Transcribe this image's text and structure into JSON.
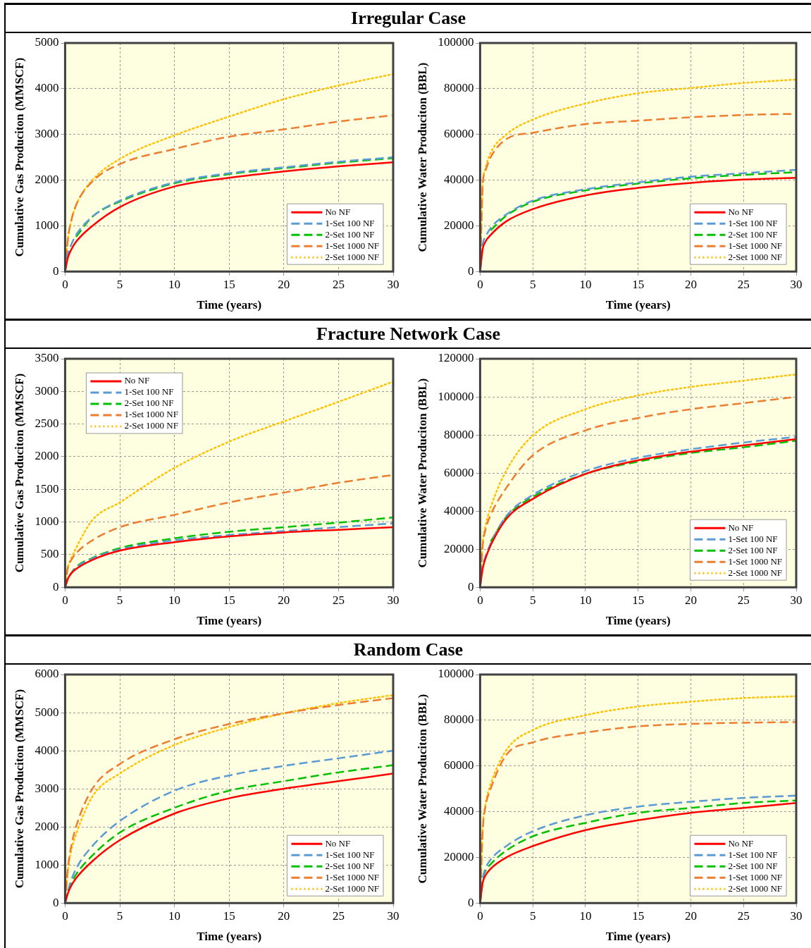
{
  "chart_data": [
    {
      "type": "line",
      "title": "Irregular Case",
      "xlabel": "Time (years)",
      "ylabel": "Cumulative Gas Produciton (MMSCF)",
      "x": [
        0,
        0.25,
        0.5,
        1,
        2.5,
        5,
        10,
        15,
        20,
        25,
        30
      ],
      "xlim": [
        0,
        30
      ],
      "xticks": [
        0,
        5,
        10,
        15,
        20,
        25,
        30
      ],
      "ylim": [
        0,
        5000
      ],
      "yticks": [
        0,
        1000,
        2000,
        3000,
        4000,
        5000
      ],
      "grid": true,
      "legend": "bottom right",
      "marker": "none",
      "series": [
        {
          "name": "No NF",
          "color": "#ff0000",
          "line_style": "solid",
          "values": [
            0,
            300,
            450,
            650,
            1000,
            1410,
            1860,
            2050,
            2190,
            2300,
            2390
          ]
        },
        {
          "name": "1-Set 100 NF",
          "color": "#5b9bd5",
          "line_style": "dashed",
          "values": [
            0,
            380,
            550,
            800,
            1200,
            1550,
            1950,
            2150,
            2280,
            2400,
            2500
          ]
        },
        {
          "name": "2-Set 100 NF",
          "color": "#00c000",
          "line_style": "dashed",
          "values": [
            null,
            null,
            null,
            760,
            1200,
            1530,
            1930,
            2130,
            2260,
            2380,
            2480
          ]
        },
        {
          "name": "1-Set 1000 NF",
          "color": "#ed7d31",
          "line_style": "dashed",
          "values": [
            0,
            700,
            1050,
            1450,
            1970,
            2350,
            2680,
            2950,
            3110,
            3280,
            3420
          ]
        },
        {
          "name": "2-Set 1000 NF",
          "color": "#ffc000",
          "line_style": "dotted",
          "values": [
            0,
            700,
            1050,
            1450,
            2000,
            2460,
            2980,
            3390,
            3770,
            4070,
            4320
          ]
        }
      ]
    },
    {
      "type": "line",
      "xlabel": "Time (years)",
      "ylabel": "Cumulative Water Produciton (BBL)",
      "x": [
        0,
        0.25,
        0.5,
        1,
        2.5,
        5,
        10,
        15,
        20,
        25,
        30
      ],
      "xlim": [
        0,
        30
      ],
      "xticks": [
        0,
        5,
        10,
        15,
        20,
        25,
        30
      ],
      "ylim": [
        0,
        100000
      ],
      "yticks": [
        0,
        20000,
        40000,
        60000,
        80000,
        100000
      ],
      "grid": true,
      "legend": "bottom right",
      "marker": "none",
      "series": [
        {
          "name": "No NF",
          "color": "#ff0000",
          "line_style": "solid",
          "values": [
            0,
            10000,
            13000,
            16000,
            22000,
            27300,
            33300,
            36600,
            38800,
            40200,
            41000
          ]
        },
        {
          "name": "1-Set 100 NF",
          "color": "#5b9bd5",
          "line_style": "dashed",
          "values": [
            0,
            12000,
            15000,
            19000,
            25000,
            31000,
            36000,
            39000,
            41500,
            43000,
            44500
          ]
        },
        {
          "name": "2-Set 100 NF",
          "color": "#00c000",
          "line_style": "dashed",
          "values": [
            null,
            null,
            null,
            18000,
            24500,
            30500,
            35500,
            38500,
            40800,
            42300,
            43500
          ]
        },
        {
          "name": "1-Set 1000 NF",
          "color": "#ed7d31",
          "line_style": "dashed",
          "values": [
            0,
            38000,
            44000,
            50000,
            58000,
            60700,
            64500,
            66000,
            67500,
            68500,
            69000
          ]
        },
        {
          "name": "2-Set 1000 NF",
          "color": "#ffc000",
          "line_style": "dotted",
          "values": [
            0,
            38000,
            45000,
            52000,
            60000,
            66500,
            73500,
            78000,
            80300,
            82500,
            84000
          ]
        }
      ]
    },
    {
      "type": "line",
      "title": "Fracture Network Case",
      "xlabel": "Time (years)",
      "ylabel": "Cumulative Gas Produciton (MMSCF)",
      "x": [
        0,
        0.25,
        0.5,
        1,
        2.5,
        5,
        10,
        15,
        20,
        25,
        30
      ],
      "xlim": [
        0,
        30
      ],
      "xticks": [
        0,
        5,
        10,
        15,
        20,
        25,
        30
      ],
      "ylim": [
        0,
        3500
      ],
      "yticks": [
        0,
        500,
        1000,
        1500,
        2000,
        2500,
        3000,
        3500
      ],
      "grid": true,
      "legend": "top left",
      "marker": "none",
      "series": [
        {
          "name": "No NF",
          "color": "#ff0000",
          "line_style": "solid",
          "values": [
            0,
            130,
            200,
            280,
            420,
            560,
            690,
            780,
            840,
            880,
            920
          ]
        },
        {
          "name": "1-Set 100 NF",
          "color": "#5b9bd5",
          "line_style": "dashed",
          "values": [
            0,
            130,
            200,
            300,
            440,
            580,
            720,
            800,
            860,
            920,
            980
          ]
        },
        {
          "name": "2-Set 100 NF",
          "color": "#00c000",
          "line_style": "dashed",
          "values": [
            0,
            130,
            200,
            310,
            450,
            600,
            750,
            850,
            920,
            990,
            1070
          ]
        },
        {
          "name": "1-Set 1000 NF",
          "color": "#ed7d31",
          "line_style": "dashed",
          "values": [
            0,
            300,
            400,
            520,
            720,
            920,
            1110,
            1300,
            1450,
            1600,
            1720
          ]
        },
        {
          "name": "2-Set 1000 NF",
          "color": "#ffc000",
          "line_style": "dotted",
          "values": [
            0,
            300,
            420,
            600,
            1030,
            1300,
            1830,
            2230,
            2540,
            2840,
            3150
          ]
        }
      ]
    },
    {
      "type": "line",
      "xlabel": "Time (years)",
      "ylabel": "Cumulative Water Produciton (BBL)",
      "x": [
        0,
        0.25,
        0.5,
        1,
        2.5,
        5,
        10,
        15,
        20,
        25,
        30
      ],
      "xlim": [
        0,
        30
      ],
      "xticks": [
        0,
        5,
        10,
        15,
        20,
        25,
        30
      ],
      "ylim": [
        0,
        120000
      ],
      "yticks": [
        0,
        20000,
        40000,
        60000,
        80000,
        100000,
        120000
      ],
      "grid": true,
      "legend": "bottom right",
      "marker": "none",
      "series": [
        {
          "name": "No NF",
          "color": "#ff0000",
          "line_style": "solid",
          "values": [
            0,
            10000,
            15000,
            22000,
            36000,
            46400,
            59500,
            66700,
            71200,
            74500,
            77800
          ]
        },
        {
          "name": "1-Set 100 NF",
          "color": "#5b9bd5",
          "line_style": "dashed",
          "values": [
            0,
            11000,
            16000,
            23000,
            37500,
            48500,
            61000,
            68000,
            72500,
            76000,
            79000
          ]
        },
        {
          "name": "2-Set 100 NF",
          "color": "#00c000",
          "line_style": "dashed",
          "values": [
            null,
            null,
            null,
            24000,
            37000,
            47500,
            59500,
            66000,
            70500,
            73500,
            77000
          ]
        },
        {
          "name": "1-Set 1000 NF",
          "color": "#ed7d31",
          "line_style": "dashed",
          "values": [
            0,
            22000,
            30000,
            38000,
            52300,
            69300,
            82400,
            88900,
            93500,
            96700,
            100000
          ]
        },
        {
          "name": "2-Set 1000 NF",
          "color": "#ffc000",
          "line_style": "dotted",
          "values": [
            0,
            24000,
            32000,
            42000,
            61400,
            79700,
            93500,
            100700,
            105200,
            108500,
            111800
          ]
        }
      ]
    },
    {
      "type": "line",
      "title": "Random Case",
      "xlabel": "Time (years)",
      "ylabel": "Cumulative Gas Produciton (MMSCF)",
      "x": [
        0,
        0.25,
        0.5,
        1,
        2.5,
        5,
        10,
        15,
        20,
        25,
        30
      ],
      "xlim": [
        0,
        30
      ],
      "xticks": [
        0,
        5,
        10,
        15,
        20,
        25,
        30
      ],
      "ylim": [
        0,
        6000
      ],
      "yticks": [
        0,
        1000,
        2000,
        3000,
        4000,
        5000,
        6000
      ],
      "grid": true,
      "legend": "bottom right",
      "marker": "none",
      "series": [
        {
          "name": "No NF",
          "color": "#ff0000",
          "line_style": "solid",
          "values": [
            0,
            250,
            420,
            650,
            1100,
            1650,
            2350,
            2750,
            3000,
            3200,
            3400
          ]
        },
        {
          "name": "1-Set 100 NF",
          "color": "#5b9bd5",
          "line_style": "dashed",
          "values": [
            0,
            300,
            550,
            900,
            1500,
            2150,
            2950,
            3350,
            3600,
            3800,
            4000
          ]
        },
        {
          "name": "2-Set 100 NF",
          "color": "#00c000",
          "line_style": "dashed",
          "values": [
            0,
            280,
            480,
            750,
            1250,
            1850,
            2500,
            2950,
            3200,
            3430,
            3620
          ]
        },
        {
          "name": "1-Set 1000 NF",
          "color": "#ed7d31",
          "line_style": "dashed",
          "values": [
            0,
            900,
            1400,
            2000,
            3000,
            3650,
            4300,
            4700,
            4980,
            5200,
            5380
          ]
        },
        {
          "name": "2-Set 1000 NF",
          "color": "#ffc000",
          "line_style": "dotted",
          "values": [
            0,
            850,
            1300,
            1800,
            2800,
            3400,
            4150,
            4620,
            4980,
            5250,
            5460
          ]
        }
      ]
    },
    {
      "type": "line",
      "xlabel": "Time (years)",
      "ylabel": "Cumulative Water Produciton (BBL)",
      "x": [
        0,
        0.25,
        0.5,
        1,
        2.5,
        5,
        10,
        15,
        20,
        25,
        30
      ],
      "xlim": [
        0,
        30
      ],
      "xticks": [
        0,
        5,
        10,
        15,
        20,
        25,
        30
      ],
      "ylim": [
        0,
        100000
      ],
      "yticks": [
        0,
        20000,
        40000,
        60000,
        80000,
        100000
      ],
      "grid": true,
      "legend": "bottom right",
      "marker": "none",
      "series": [
        {
          "name": "No NF",
          "color": "#ff0000",
          "line_style": "solid",
          "values": [
            0,
            9000,
            12000,
            15000,
            20000,
            24900,
            31900,
            36200,
            39500,
            41600,
            43800
          ]
        },
        {
          "name": "1-Set 100 NF",
          "color": "#5b9bd5",
          "line_style": "dashed",
          "values": [
            0,
            11000,
            15000,
            19000,
            25000,
            31400,
            38400,
            42200,
            44300,
            46000,
            47000
          ]
        },
        {
          "name": "2-Set 100 NF",
          "color": "#00c000",
          "line_style": "dashed",
          "values": [
            0,
            10500,
            14000,
            17000,
            23000,
            29200,
            35100,
            39500,
            41600,
            43800,
            44900
          ]
        },
        {
          "name": "1-Set 1000 NF",
          "color": "#ed7d31",
          "line_style": "dashed",
          "values": [
            0,
            32000,
            42000,
            50000,
            64900,
            70300,
            74600,
            77300,
            78400,
            78900,
            79200
          ]
        },
        {
          "name": "2-Set 1000 NF",
          "color": "#ffc000",
          "line_style": "dotted",
          "values": [
            0,
            33000,
            43000,
            52000,
            67000,
            75700,
            82200,
            86000,
            88100,
            89700,
            90500
          ]
        }
      ]
    }
  ]
}
